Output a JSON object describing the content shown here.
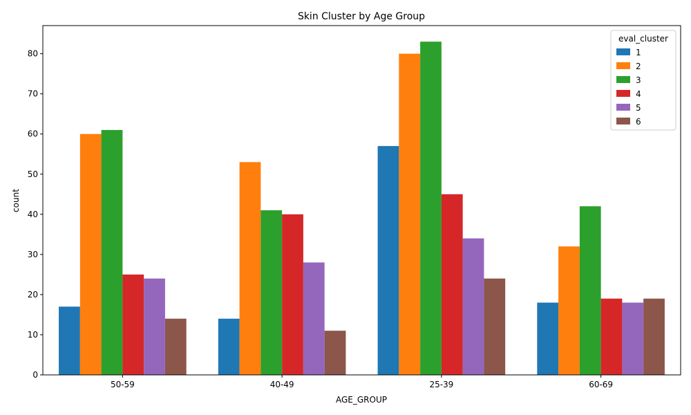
{
  "chart_data": {
    "type": "bar",
    "title": "Skin Cluster by Age Group",
    "xlabel": "AGE_GROUP",
    "ylabel": "count",
    "categories": [
      "50-59",
      "40-49",
      "25-39",
      "60-69"
    ],
    "ylim": [
      0,
      87
    ],
    "yticks": [
      0,
      10,
      20,
      30,
      40,
      50,
      60,
      70,
      80
    ],
    "legend": {
      "title": "eval_cluster",
      "position": "top-right"
    },
    "colors": [
      "#1f77b4",
      "#ff7f0e",
      "#2ca02c",
      "#d62728",
      "#9467bd",
      "#8c564b"
    ],
    "series": [
      {
        "name": "1",
        "values": [
          17,
          14,
          57,
          18
        ]
      },
      {
        "name": "2",
        "values": [
          60,
          53,
          80,
          32
        ]
      },
      {
        "name": "3",
        "values": [
          61,
          41,
          83,
          42
        ]
      },
      {
        "name": "4",
        "values": [
          25,
          40,
          45,
          19
        ]
      },
      {
        "name": "5",
        "values": [
          24,
          28,
          34,
          18
        ]
      },
      {
        "name": "6",
        "values": [
          14,
          11,
          24,
          19
        ]
      }
    ]
  }
}
